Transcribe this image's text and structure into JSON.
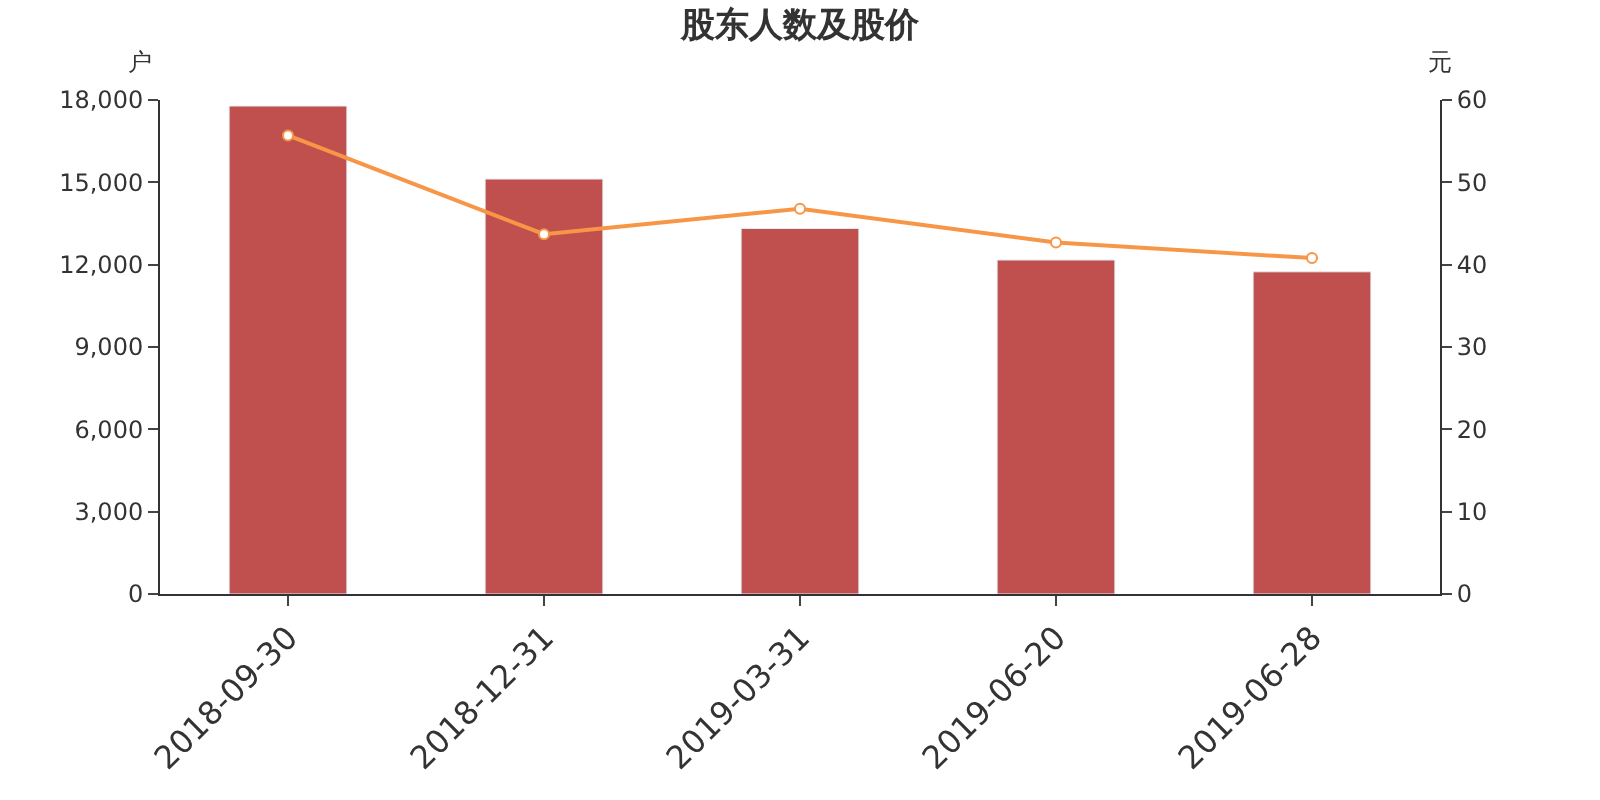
{
  "chart_data": {
    "type": "bar",
    "title": "股东人数及股价",
    "ylabel": "户",
    "y2label": "元",
    "categories": [
      "2018-09-30",
      "2018-12-31",
      "2019-03-31",
      "2019-06-20",
      "2019-06-28"
    ],
    "series": [
      {
        "color": "#c0504d",
        "values": [
          17780,
          15120,
          13320,
          12170,
          11740
        ]
      },
      {
        "type": "line",
        "axis": "y2",
        "color": "#f79646",
        "marker": "circle",
        "values": [
          55.7,
          43.7,
          46.8,
          42.7,
          40.8
        ]
      }
    ],
    "ylim": [
      0,
      18000
    ],
    "yticks": [
      {
        "value": 0,
        "label": "0"
      },
      {
        "value": 3000,
        "label": "3,000"
      },
      {
        "value": 6000,
        "label": "6,000"
      },
      {
        "value": 9000,
        "label": "9,000"
      },
      {
        "value": 12000,
        "label": "12,000"
      },
      {
        "value": 15000,
        "label": "15,000"
      },
      {
        "value": 18000,
        "label": "18,000"
      }
    ],
    "y2lim": [
      0,
      60
    ],
    "y2ticks": [
      0,
      10,
      20,
      30,
      40,
      50,
      60
    ]
  }
}
